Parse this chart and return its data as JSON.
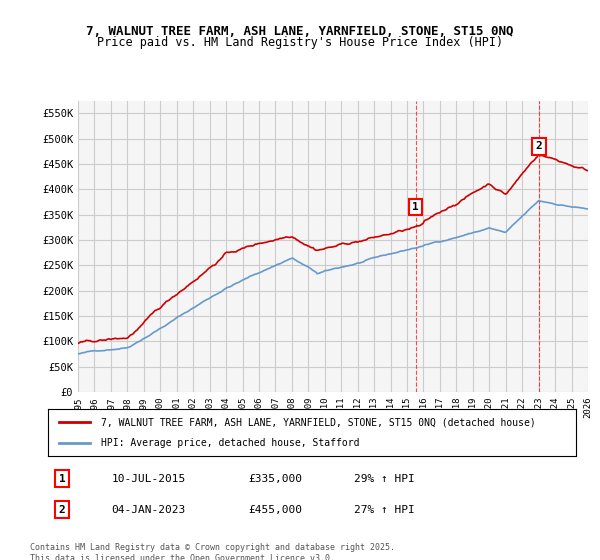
{
  "title_line1": "7, WALNUT TREE FARM, ASH LANE, YARNFIELD, STONE, ST15 0NQ",
  "title_line2": "Price paid vs. HM Land Registry's House Price Index (HPI)",
  "ylabel": "",
  "xlabel": "",
  "ylim": [
    0,
    575000
  ],
  "yticks": [
    0,
    50000,
    100000,
    150000,
    200000,
    250000,
    300000,
    350000,
    400000,
    450000,
    500000,
    550000
  ],
  "ytick_labels": [
    "£0",
    "£50K",
    "£100K",
    "£150K",
    "£200K",
    "£250K",
    "£300K",
    "£350K",
    "£400K",
    "£450K",
    "£500K",
    "£550K"
  ],
  "grid_color": "#cccccc",
  "background_color": "#ffffff",
  "plot_bg_color": "#f5f5f5",
  "property_color": "#cc0000",
  "hpi_color": "#6699cc",
  "marker1_x": 2015.52,
  "marker1_y": 335000,
  "marker1_label": "1",
  "marker2_x": 2023.01,
  "marker2_y": 455000,
  "marker2_label": "2",
  "legend_property": "7, WALNUT TREE FARM, ASH LANE, YARNFIELD, STONE, ST15 0NQ (detached house)",
  "legend_hpi": "HPI: Average price, detached house, Stafford",
  "annotation1_num": "1",
  "annotation1_date": "10-JUL-2015",
  "annotation1_price": "£335,000",
  "annotation1_hpi": "29% ↑ HPI",
  "annotation2_num": "2",
  "annotation2_date": "04-JAN-2023",
  "annotation2_price": "£455,000",
  "annotation2_hpi": "27% ↑ HPI",
  "footer": "Contains HM Land Registry data © Crown copyright and database right 2025.\nThis data is licensed under the Open Government Licence v3.0.",
  "xmin": 1995,
  "xmax": 2026
}
